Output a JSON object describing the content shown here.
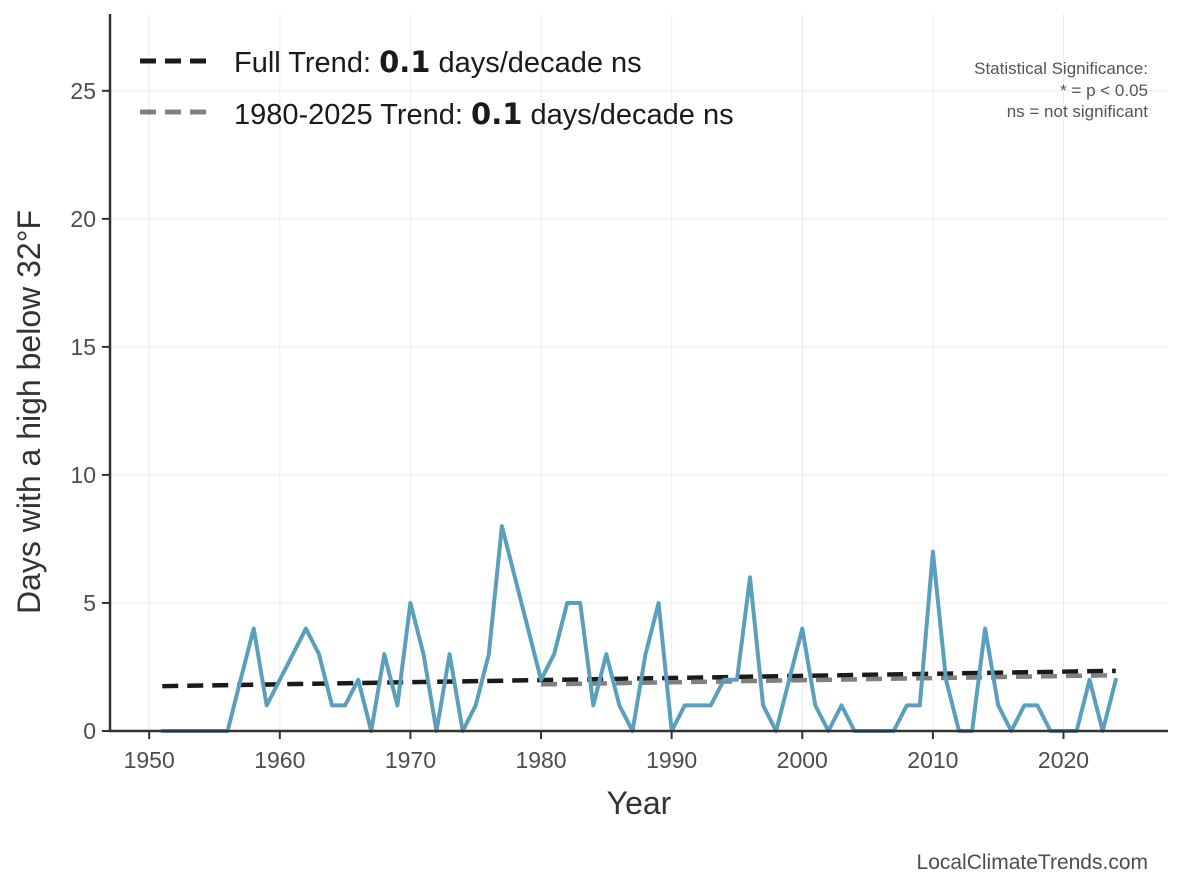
{
  "chart_data": {
    "type": "line",
    "xlabel": "Year",
    "ylabel": "Days with a high below 32°F",
    "xlim": [
      1947,
      2028
    ],
    "ylim": [
      0,
      28
    ],
    "xticks": [
      1950,
      1960,
      1970,
      1980,
      1990,
      2000,
      2010,
      2020
    ],
    "yticks": [
      0,
      5,
      10,
      15,
      20,
      25
    ],
    "grid": true,
    "series": [
      {
        "name": "",
        "color": "#5b9fbd",
        "x": [
          1951,
          1952,
          1953,
          1954,
          1955,
          1956,
          1957,
          1958,
          1959,
          1960,
          1961,
          1962,
          1963,
          1964,
          1965,
          1966,
          1967,
          1968,
          1969,
          1970,
          1971,
          1972,
          1973,
          1974,
          1975,
          1976,
          1977,
          1978,
          1979,
          1980,
          1981,
          1982,
          1983,
          1984,
          1985,
          1986,
          1987,
          1988,
          1989,
          1990,
          1991,
          1992,
          1993,
          1994,
          1995,
          1996,
          1997,
          1998,
          1999,
          2000,
          2001,
          2002,
          2003,
          2004,
          2005,
          2006,
          2007,
          2008,
          2009,
          2010,
          2011,
          2012,
          2013,
          2014,
          2015,
          2016,
          2017,
          2018,
          2019,
          2020,
          2021,
          2022,
          2023,
          2024
        ],
        "y": [
          0,
          0,
          0,
          0,
          0,
          0,
          2,
          4,
          1,
          2,
          3,
          4,
          3,
          1,
          1,
          2,
          0,
          3,
          1,
          5,
          3,
          0,
          3,
          0,
          1,
          3,
          8,
          6,
          4,
          2,
          3,
          5,
          5,
          1,
          3,
          1,
          0,
          3,
          5,
          0,
          1,
          1,
          1,
          2,
          2,
          6,
          1,
          0,
          2,
          4,
          1,
          0,
          1,
          0,
          0,
          0,
          0,
          1,
          1,
          7,
          2,
          0,
          0,
          4,
          1,
          0,
          1,
          1,
          0,
          0,
          0,
          2,
          0,
          2
        ]
      }
    ],
    "trend_lines": [
      {
        "label": "Full Trend",
        "color": "#1a1a1a",
        "x": [
          1951,
          2024
        ],
        "y": [
          1.75,
          2.35
        ]
      },
      {
        "label": "1980-2025 Trend",
        "color": "#808080",
        "x": [
          1980,
          2024
        ],
        "y": [
          1.82,
          2.18
        ]
      }
    ],
    "legend": {
      "position": "top-left",
      "items": [
        {
          "prefix": "Full Trend: ",
          "value": "0.1",
          "suffix": " days/decade ns",
          "color": "#1a1a1a"
        },
        {
          "prefix": "1980-2025 Trend: ",
          "value": "0.1",
          "suffix": " days/decade ns",
          "color": "#808080"
        }
      ]
    },
    "significance_note": [
      "Statistical Significance:",
      "* = p < 0.05",
      "ns = not significant"
    ],
    "source": "LocalClimateTrends.com"
  }
}
